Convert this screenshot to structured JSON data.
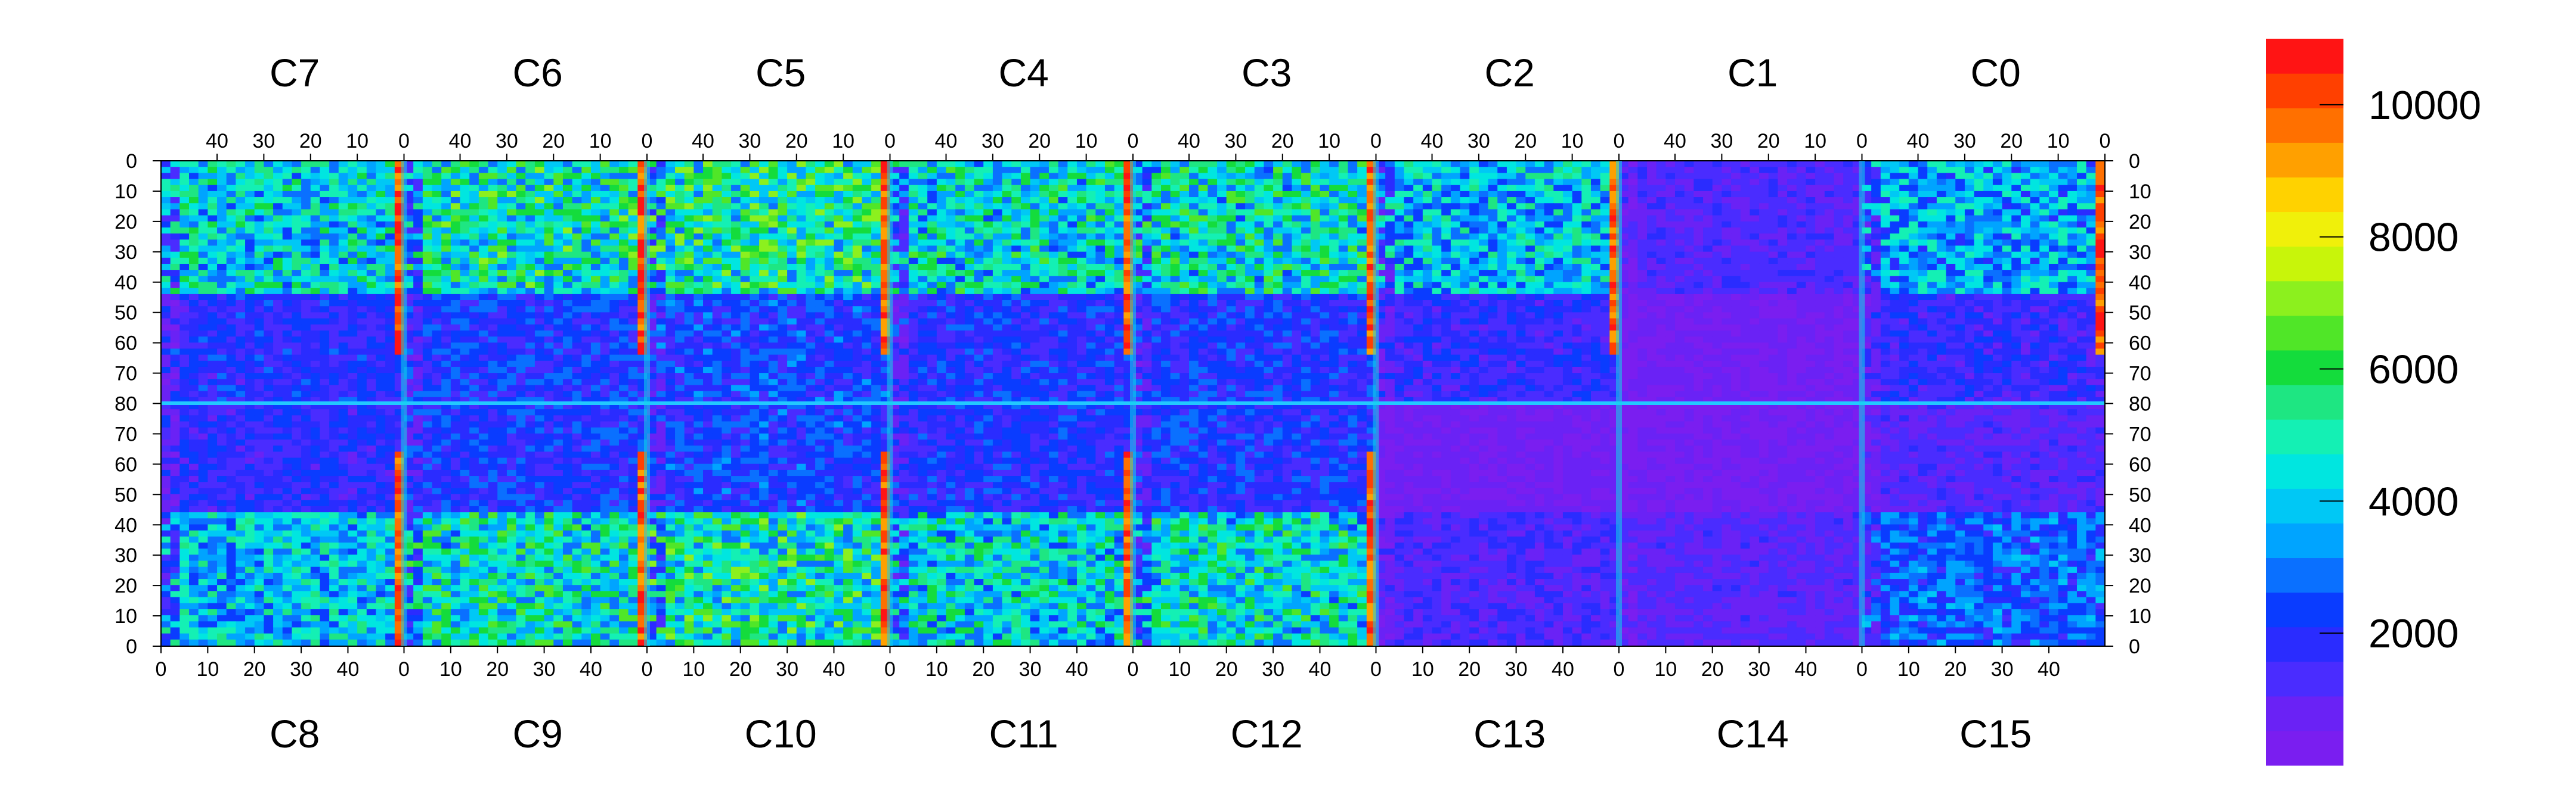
{
  "chart_data": {
    "type": "heatmap",
    "top_chip_labels": [
      "C7",
      "C6",
      "C5",
      "C4",
      "C3",
      "C2",
      "C1",
      "C0"
    ],
    "bottom_chip_labels": [
      "C8",
      "C9",
      "C10",
      "C11",
      "C12",
      "C13",
      "C14",
      "C15"
    ],
    "top_axis_ticks": [
      "40",
      "30",
      "20",
      "10",
      "0"
    ],
    "bottom_axis_ticks": [
      "0",
      "10",
      "20",
      "30",
      "40"
    ],
    "left_axis_ticks": [
      "0",
      "10",
      "20",
      "30",
      "40",
      "50",
      "60",
      "70",
      "80",
      "70",
      "60",
      "50",
      "40",
      "30",
      "20",
      "10",
      "0"
    ],
    "right_axis_ticks": [
      "0",
      "10",
      "20",
      "30",
      "40",
      "50",
      "60",
      "70",
      "80",
      "70",
      "60",
      "50",
      "40",
      "30",
      "20",
      "10",
      "0"
    ],
    "columns_per_chip": 52,
    "rows_per_half": 80,
    "colorbar": {
      "ticks": [
        {
          "value": 2000,
          "label": "2000"
        },
        {
          "value": 4000,
          "label": "4000"
        },
        {
          "value": 6000,
          "label": "6000"
        },
        {
          "value": 8000,
          "label": "8000"
        },
        {
          "value": 10000,
          "label": "10000"
        }
      ],
      "zmin": 0,
      "zmax": 11000,
      "palette": [
        "#7a1ef0",
        "#6a22f5",
        "#4a2cff",
        "#2a2cff",
        "#0a3cff",
        "#0a70ff",
        "#00a4ff",
        "#00c8f5",
        "#00e6e0",
        "#14f0b4",
        "#1ee682",
        "#14dc3c",
        "#50e628",
        "#8cf01e",
        "#c8f50a",
        "#f0f00a",
        "#ffd200",
        "#ffa000",
        "#ff7000",
        "#ff4000",
        "#ff1414"
      ]
    },
    "chips": [
      {
        "name": "C7",
        "mean_level": 4200
      },
      {
        "name": "C6",
        "mean_level": 4800
      },
      {
        "name": "C5",
        "mean_level": 5000
      },
      {
        "name": "C4",
        "mean_level": 4400
      },
      {
        "name": "C3",
        "mean_level": 4600
      },
      {
        "name": "C2",
        "mean_level": 3800
      },
      {
        "name": "C1",
        "mean_level": 1200
      },
      {
        "name": "C0",
        "mean_level": 3600
      },
      {
        "name": "C8",
        "mean_level": 3900
      },
      {
        "name": "C9",
        "mean_level": 4700
      },
      {
        "name": "C10",
        "mean_level": 4900
      },
      {
        "name": "C11",
        "mean_level": 4300
      },
      {
        "name": "C12",
        "mean_level": 4500
      },
      {
        "name": "C13",
        "mean_level": 1300
      },
      {
        "name": "C14",
        "mean_level": 1100
      },
      {
        "name": "C15",
        "mean_level": 2600
      }
    ],
    "hot_columns_level": 10500
  }
}
